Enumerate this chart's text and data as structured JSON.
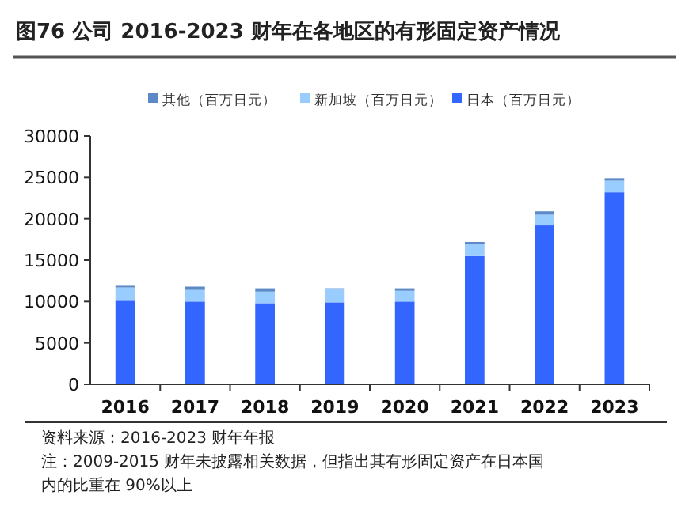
{
  "chart_data": {
    "type": "bar",
    "title": "图76 公司 2016-2023 财年在各地区的有形固定资产情况",
    "categories": [
      "2016",
      "2017",
      "2018",
      "2019",
      "2020",
      "2021",
      "2022",
      "2023"
    ],
    "stacked": true,
    "series": [
      {
        "name": "日本（百万日元）",
        "color": "#3366ff",
        "values": [
          10100,
          10000,
          9800,
          9900,
          10000,
          15500,
          19200,
          23200
        ]
      },
      {
        "name": "新加坡（百万日元）",
        "color": "#99ccff",
        "values": [
          1600,
          1400,
          1400,
          1600,
          1300,
          1400,
          1300,
          1400
        ]
      },
      {
        "name": "其他（百万日元）",
        "color": "#5b8ac6",
        "values": [
          200,
          400,
          400,
          100,
          300,
          300,
          400,
          300
        ]
      }
    ],
    "ylim": [
      0,
      30000
    ],
    "yticks": [
      0,
      5000,
      10000,
      15000,
      20000,
      25000,
      30000
    ],
    "grid": false,
    "legend": "top",
    "annotations": [
      "资料来源：2016-2023 财年年报",
      "注：2009-2015 财年未披露相关数据，但指出其有形固定资产在日本国内的比重在 90%以上"
    ]
  }
}
